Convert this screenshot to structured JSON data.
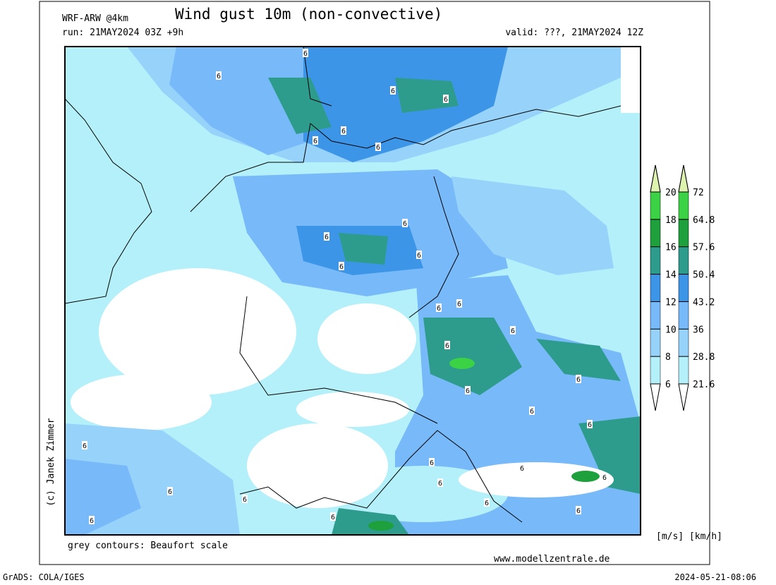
{
  "header": {
    "model": "WRF-ARW @4km",
    "title": "Wind gust 10m (non-convective)",
    "run": "run: 21MAY2024 03Z +9h",
    "valid": "valid: ???, 21MAY2024 12Z"
  },
  "copyright": "(c) Janek Zimmer",
  "note": "grey contours: Beaufort scale",
  "website": "www.modellzentrale.de",
  "units": "[m/s] [km/h]",
  "footer": {
    "software": "GrADS: COLA/IGES",
    "timestamp": "2024-05-21-08:06"
  },
  "colorbar": {
    "levels_ms": [
      6,
      8,
      10,
      12,
      14,
      16,
      18,
      20
    ],
    "levels_kmh": [
      21.6,
      28.8,
      36,
      43.2,
      50.4,
      57.6,
      64.8,
      72
    ],
    "colors": [
      "#b4f0fa",
      "#96d2fa",
      "#78b9fa",
      "#3c95e6",
      "#2e9c8c",
      "#1ea03c",
      "#3cd246",
      "#a0f0a0",
      "#f5f5b4"
    ]
  },
  "contour_labels": [
    "6",
    "6",
    "6",
    "6",
    "6",
    "6",
    "6",
    "6",
    "6",
    "6",
    "6",
    "6",
    "6",
    "6",
    "6",
    "6",
    "6",
    "6",
    "6",
    "6",
    "6",
    "6",
    "6",
    "6",
    "6",
    "6",
    "6",
    "6",
    "6",
    "6"
  ]
}
